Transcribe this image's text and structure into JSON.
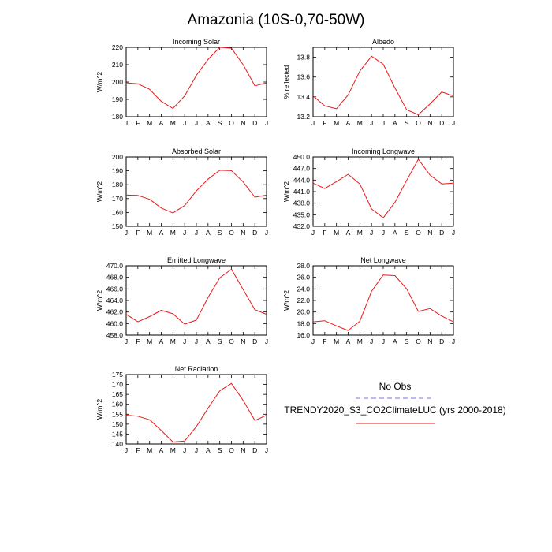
{
  "title": "Amazonia (10S-0,70-50W)",
  "legend": {
    "obs_label": "No Obs",
    "obs_color": "#7777ee",
    "model_label": "TRENDY2020_S3_CO2ClimateLUC (yrs 2000-2018)",
    "model_color": "#e8191a"
  },
  "chart_data": [
    {
      "type": "line",
      "title": "Incoming Solar",
      "ylabel": "W/m^2",
      "categories": [
        "J",
        "F",
        "M",
        "A",
        "M",
        "J",
        "J",
        "A",
        "S",
        "O",
        "N",
        "D",
        "J"
      ],
      "ylim": [
        180,
        220
      ],
      "yticks": [
        180,
        190,
        200,
        210,
        220
      ],
      "ytick_labels": [
        "180",
        "190",
        "200",
        "210",
        "220"
      ],
      "series": [
        {
          "name": "TRENDY2020_S3_CO2ClimateLUC (yrs 2000-2018)",
          "color": "#e8191a",
          "values": [
            199.5,
            199.0,
            195.8,
            188.8,
            184.8,
            192.0,
            203.8,
            213.0,
            220.0,
            219.5,
            210.0,
            197.8,
            199.5
          ]
        }
      ]
    },
    {
      "type": "line",
      "title": "Albedo",
      "ylabel": "% reflected",
      "categories": [
        "J",
        "F",
        "M",
        "A",
        "M",
        "J",
        "J",
        "A",
        "S",
        "O",
        "N",
        "D",
        "J"
      ],
      "ylim": [
        13.2,
        13.9
      ],
      "yticks": [
        13.2,
        13.4,
        13.6,
        13.8
      ],
      "ytick_labels": [
        "13.2",
        "13.4",
        "13.6",
        "13.8"
      ],
      "series": [
        {
          "name": "TRENDY2020_S3_CO2ClimateLUC (yrs 2000-2018)",
          "color": "#e8191a",
          "values": [
            13.41,
            13.31,
            13.28,
            13.42,
            13.66,
            13.81,
            13.73,
            13.49,
            13.27,
            13.22,
            13.33,
            13.45,
            13.41
          ]
        }
      ]
    },
    {
      "type": "line",
      "title": "Absorbed Solar",
      "ylabel": "W/m^2",
      "categories": [
        "J",
        "F",
        "M",
        "A",
        "M",
        "J",
        "J",
        "A",
        "S",
        "O",
        "N",
        "D",
        "J"
      ],
      "ylim": [
        150,
        200
      ],
      "yticks": [
        150,
        160,
        170,
        180,
        190,
        200
      ],
      "ytick_labels": [
        "150",
        "160",
        "170",
        "180",
        "190",
        "200"
      ],
      "series": [
        {
          "name": "TRENDY2020_S3_CO2ClimateLUC (yrs 2000-2018)",
          "color": "#e8191a",
          "values": [
            172.5,
            172.3,
            169.5,
            163.2,
            159.6,
            165.0,
            175.5,
            184.0,
            190.4,
            190.1,
            182.0,
            171.0,
            172.5
          ]
        }
      ]
    },
    {
      "type": "line",
      "title": "Incoming Longwave",
      "ylabel": "W/m^2",
      "categories": [
        "J",
        "F",
        "M",
        "A",
        "M",
        "J",
        "J",
        "A",
        "S",
        "O",
        "N",
        "D",
        "J"
      ],
      "ylim": [
        432,
        450
      ],
      "yticks": [
        432,
        435,
        438,
        441,
        444,
        447,
        450
      ],
      "ytick_labels": [
        "432.0",
        "435.0",
        "438.0",
        "441.0",
        "444.0",
        "447.0",
        "450.0"
      ],
      "series": [
        {
          "name": "TRENDY2020_S3_CO2ClimateLUC (yrs 2000-2018)",
          "color": "#e8191a",
          "values": [
            443.2,
            441.8,
            443.6,
            445.5,
            443.0,
            436.5,
            434.2,
            438.2,
            443.9,
            449.4,
            445.3,
            443.0,
            443.2
          ]
        }
      ]
    },
    {
      "type": "line",
      "title": "Emitted Longwave",
      "ylabel": "W/m^2",
      "categories": [
        "J",
        "F",
        "M",
        "A",
        "M",
        "J",
        "J",
        "A",
        "S",
        "O",
        "N",
        "D",
        "J"
      ],
      "ylim": [
        458,
        470
      ],
      "yticks": [
        458,
        460,
        462,
        464,
        466,
        468,
        470
      ],
      "ytick_labels": [
        "458.0",
        "460.0",
        "462.0",
        "464.0",
        "466.0",
        "468.0",
        "470.0"
      ],
      "series": [
        {
          "name": "TRENDY2020_S3_CO2ClimateLUC (yrs 2000-2018)",
          "color": "#e8191a",
          "values": [
            461.6,
            460.3,
            461.2,
            462.3,
            461.7,
            459.9,
            460.6,
            464.5,
            467.9,
            469.4,
            465.9,
            462.4,
            461.6
          ]
        }
      ]
    },
    {
      "type": "line",
      "title": "Net Longwave",
      "ylabel": "W/m^2",
      "categories": [
        "J",
        "F",
        "M",
        "A",
        "M",
        "J",
        "J",
        "A",
        "S",
        "O",
        "N",
        "D",
        "J"
      ],
      "ylim": [
        16,
        28
      ],
      "yticks": [
        16,
        18,
        20,
        22,
        24,
        26,
        28
      ],
      "ytick_labels": [
        "16.0",
        "18.0",
        "20.0",
        "22.0",
        "24.0",
        "26.0",
        "28.0"
      ],
      "series": [
        {
          "name": "TRENDY2020_S3_CO2ClimateLUC (yrs 2000-2018)",
          "color": "#e8191a",
          "values": [
            18.3,
            18.5,
            17.6,
            16.8,
            18.4,
            23.6,
            26.4,
            26.3,
            24.0,
            20.1,
            20.6,
            19.3,
            18.3
          ]
        }
      ]
    },
    {
      "type": "line",
      "title": "Net Radiation",
      "ylabel": "W/m^2",
      "categories": [
        "J",
        "F",
        "M",
        "A",
        "M",
        "J",
        "J",
        "A",
        "S",
        "O",
        "N",
        "D",
        "J"
      ],
      "ylim": [
        140,
        175
      ],
      "yticks": [
        140,
        145,
        150,
        155,
        160,
        165,
        170,
        175
      ],
      "ytick_labels": [
        "140",
        "145",
        "150",
        "155",
        "160",
        "165",
        "170",
        "175"
      ],
      "series": [
        {
          "name": "TRENDY2020_S3_CO2ClimateLUC (yrs 2000-2018)",
          "color": "#e8191a",
          "values": [
            154.5,
            154.0,
            152.2,
            146.8,
            141.0,
            141.5,
            148.8,
            158.0,
            166.8,
            170.5,
            162.0,
            151.8,
            154.5
          ]
        }
      ]
    }
  ]
}
